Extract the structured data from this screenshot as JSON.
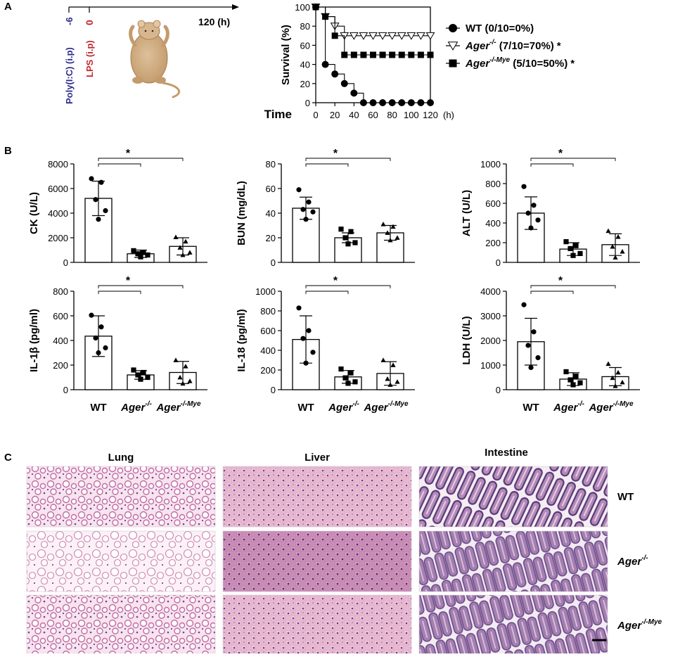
{
  "panels": {
    "a": "A",
    "b": "B",
    "c": "C"
  },
  "timeline": {
    "end_label": "120 (h)",
    "start_tick": "-6",
    "zero_tick": "0",
    "polyic_label": "Poly(I:C) (i.p)",
    "lps_label": "LPS (i.p)",
    "colors": {
      "polyic": "#2d2d8c",
      "lps": "#c0282d"
    }
  },
  "group_labels": [
    "WT",
    "Ager",
    "Ager"
  ],
  "group_superscripts": [
    "",
    "-/-",
    "-/-Mye"
  ],
  "chart_data": [
    {
      "id": "survival",
      "type": "line",
      "ylabel": "Survival (%)",
      "xlabel": "Time",
      "xunit": "(h)",
      "xlim": [
        0,
        120
      ],
      "ylim": [
        0,
        100
      ],
      "xticks": [
        0,
        20,
        40,
        60,
        80,
        100,
        120
      ],
      "yticks": [
        0,
        20,
        40,
        60,
        80,
        100
      ],
      "series": [
        {
          "name": "WT",
          "legend_text": "(0/10=0%)",
          "marker": "circle",
          "x": [
            0,
            10,
            20,
            30,
            40,
            50,
            60,
            70,
            80,
            90,
            100,
            110,
            120
          ],
          "y": [
            100,
            40,
            30,
            20,
            10,
            0,
            0,
            0,
            0,
            0,
            0,
            0,
            0
          ]
        },
        {
          "name": "Ager",
          "sup": "-/-",
          "legend_text": "(7/10=70%)",
          "sig": "*",
          "marker": "triangle",
          "x": [
            0,
            10,
            20,
            30,
            40,
            50,
            60,
            70,
            80,
            90,
            100,
            110,
            120
          ],
          "y": [
            100,
            90,
            80,
            70,
            70,
            70,
            70,
            70,
            70,
            70,
            70,
            70,
            70
          ]
        },
        {
          "name": "Ager",
          "sup": "-/-Mye",
          "legend_text": "(5/10=50%)",
          "sig": "*",
          "marker": "square",
          "x": [
            0,
            10,
            20,
            30,
            40,
            50,
            60,
            70,
            80,
            90,
            100,
            110,
            120
          ],
          "y": [
            100,
            90,
            70,
            50,
            50,
            50,
            50,
            50,
            50,
            50,
            50,
            50,
            50
          ]
        }
      ]
    },
    {
      "id": "ck",
      "type": "bar",
      "ylabel": "CK (U/L)",
      "ylim": [
        0,
        8000
      ],
      "yticks": [
        0,
        2000,
        4000,
        6000,
        8000
      ],
      "sig": "*",
      "means": [
        5200,
        700,
        1300
      ],
      "sd": [
        1400,
        300,
        700
      ],
      "points": [
        [
          6800,
          6500,
          5100,
          4200,
          3500
        ],
        [
          950,
          800,
          700,
          600,
          450
        ],
        [
          2050,
          1700,
          1200,
          800,
          600
        ]
      ]
    },
    {
      "id": "bun",
      "type": "bar",
      "ylabel": "BUN (mg/dL)",
      "ylim": [
        0,
        80
      ],
      "yticks": [
        0,
        20,
        40,
        60,
        80
      ],
      "sig": "*",
      "means": [
        44,
        20,
        24
      ],
      "sd": [
        9,
        4,
        6
      ],
      "points": [
        [
          59,
          49,
          43,
          41,
          35
        ],
        [
          27,
          25,
          20,
          16,
          15
        ],
        [
          31,
          29,
          24,
          20,
          18
        ]
      ]
    },
    {
      "id": "alt",
      "type": "bar",
      "ylabel": "ALT (U/L)",
      "ylim": [
        0,
        1000
      ],
      "yticks": [
        0,
        200,
        400,
        600,
        800,
        1000
      ],
      "sig": "*",
      "means": [
        500,
        135,
        180
      ],
      "sd": [
        165,
        65,
        110
      ],
      "points": [
        [
          770,
          580,
          500,
          430,
          350
        ],
        [
          210,
          170,
          140,
          90,
          70
        ],
        [
          320,
          260,
          160,
          110,
          50
        ]
      ]
    },
    {
      "id": "il1b",
      "type": "bar",
      "ylabel": "IL-1β (pg/ml)",
      "ylim": [
        0,
        800
      ],
      "yticks": [
        0,
        200,
        400,
        600,
        800
      ],
      "sig": "*",
      "means": [
        435,
        120,
        140
      ],
      "sd": [
        165,
        35,
        90
      ],
      "points": [
        [
          605,
          510,
          420,
          340,
          300
        ],
        [
          160,
          140,
          120,
          100,
          85
        ],
        [
          240,
          190,
          100,
          70,
          50
        ]
      ]
    },
    {
      "id": "il18",
      "type": "bar",
      "ylabel": "IL-18 (pg/ml)",
      "ylim": [
        0,
        1000
      ],
      "yticks": [
        0,
        200,
        400,
        600,
        800,
        1000
      ],
      "sig": "*",
      "means": [
        510,
        130,
        165
      ],
      "sd": [
        240,
        65,
        120
      ],
      "points": [
        [
          830,
          600,
          520,
          380,
          270
        ],
        [
          210,
          170,
          120,
          80,
          65
        ],
        [
          300,
          250,
          110,
          80,
          50
        ]
      ]
    },
    {
      "id": "ldh",
      "type": "bar",
      "ylabel": "LDH (U/L)",
      "ylim": [
        0,
        4000
      ],
      "yticks": [
        0,
        1000,
        2000,
        3000,
        4000
      ],
      "sig": "*",
      "means": [
        1950,
        430,
        530
      ],
      "sd": [
        950,
        260,
        370
      ],
      "points": [
        [
          3450,
          2350,
          1800,
          1300,
          900
        ],
        [
          730,
          550,
          400,
          280,
          200
        ],
        [
          1050,
          700,
          480,
          300,
          150
        ]
      ]
    }
  ],
  "histology": {
    "columns": [
      "Lung",
      "Liver",
      "Intestine"
    ],
    "rows": [
      {
        "label": "WT",
        "sup": ""
      },
      {
        "label": "Ager",
        "sup": "-/-"
      },
      {
        "label": "Ager",
        "sup": "-/-Mye"
      }
    ]
  }
}
